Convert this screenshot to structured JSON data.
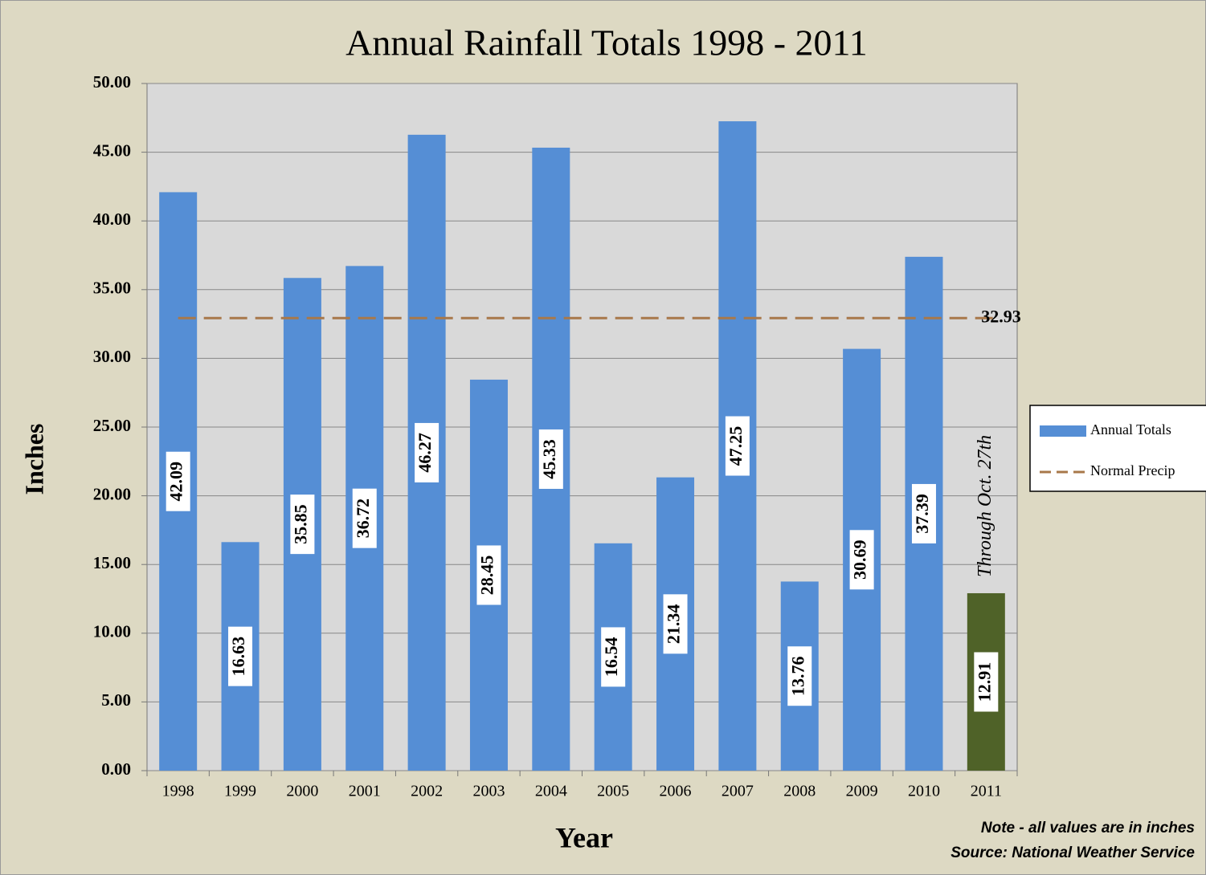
{
  "chart_data": {
    "type": "bar",
    "title": "Annual Rainfall Totals 1998 - 2011",
    "x_label": "Year",
    "y_label": "Inches",
    "categories": [
      "1998",
      "1999",
      "2000",
      "2001",
      "2002",
      "2003",
      "2004",
      "2005",
      "2006",
      "2007",
      "2008",
      "2009",
      "2010",
      "2011"
    ],
    "series": [
      {
        "name": "Annual Totals",
        "color": "#558ed5",
        "values": [
          42.09,
          16.63,
          35.85,
          36.72,
          46.27,
          28.45,
          45.33,
          16.54,
          21.34,
          47.25,
          13.76,
          30.69,
          37.39,
          12.91
        ]
      }
    ],
    "highlight": {
      "category": "2011",
      "color": "#4f6228"
    },
    "reference_line": {
      "name": "Normal Precip",
      "value": 32.93,
      "color": "#a8784a"
    },
    "annotation": "Through Oct. 27th",
    "ylim": [
      0,
      50
    ],
    "yticks": [
      {
        "value": 0,
        "label": "0.00"
      },
      {
        "value": 5,
        "label": "5.00"
      },
      {
        "value": 10,
        "label": "10.00"
      },
      {
        "value": 15,
        "label": "15.00"
      },
      {
        "value": 20,
        "label": "20.00"
      },
      {
        "value": 25,
        "label": "25.00"
      },
      {
        "value": 30,
        "label": "30.00"
      },
      {
        "value": 35,
        "label": "35.00"
      },
      {
        "value": 40,
        "label": "40.00"
      },
      {
        "value": 45,
        "label": "45.00"
      },
      {
        "value": 50,
        "label": "50.00"
      }
    ],
    "grid": true,
    "legend": "right",
    "notes": [
      "Note - all values are in inches",
      "Source:  National Weather Service"
    ]
  }
}
